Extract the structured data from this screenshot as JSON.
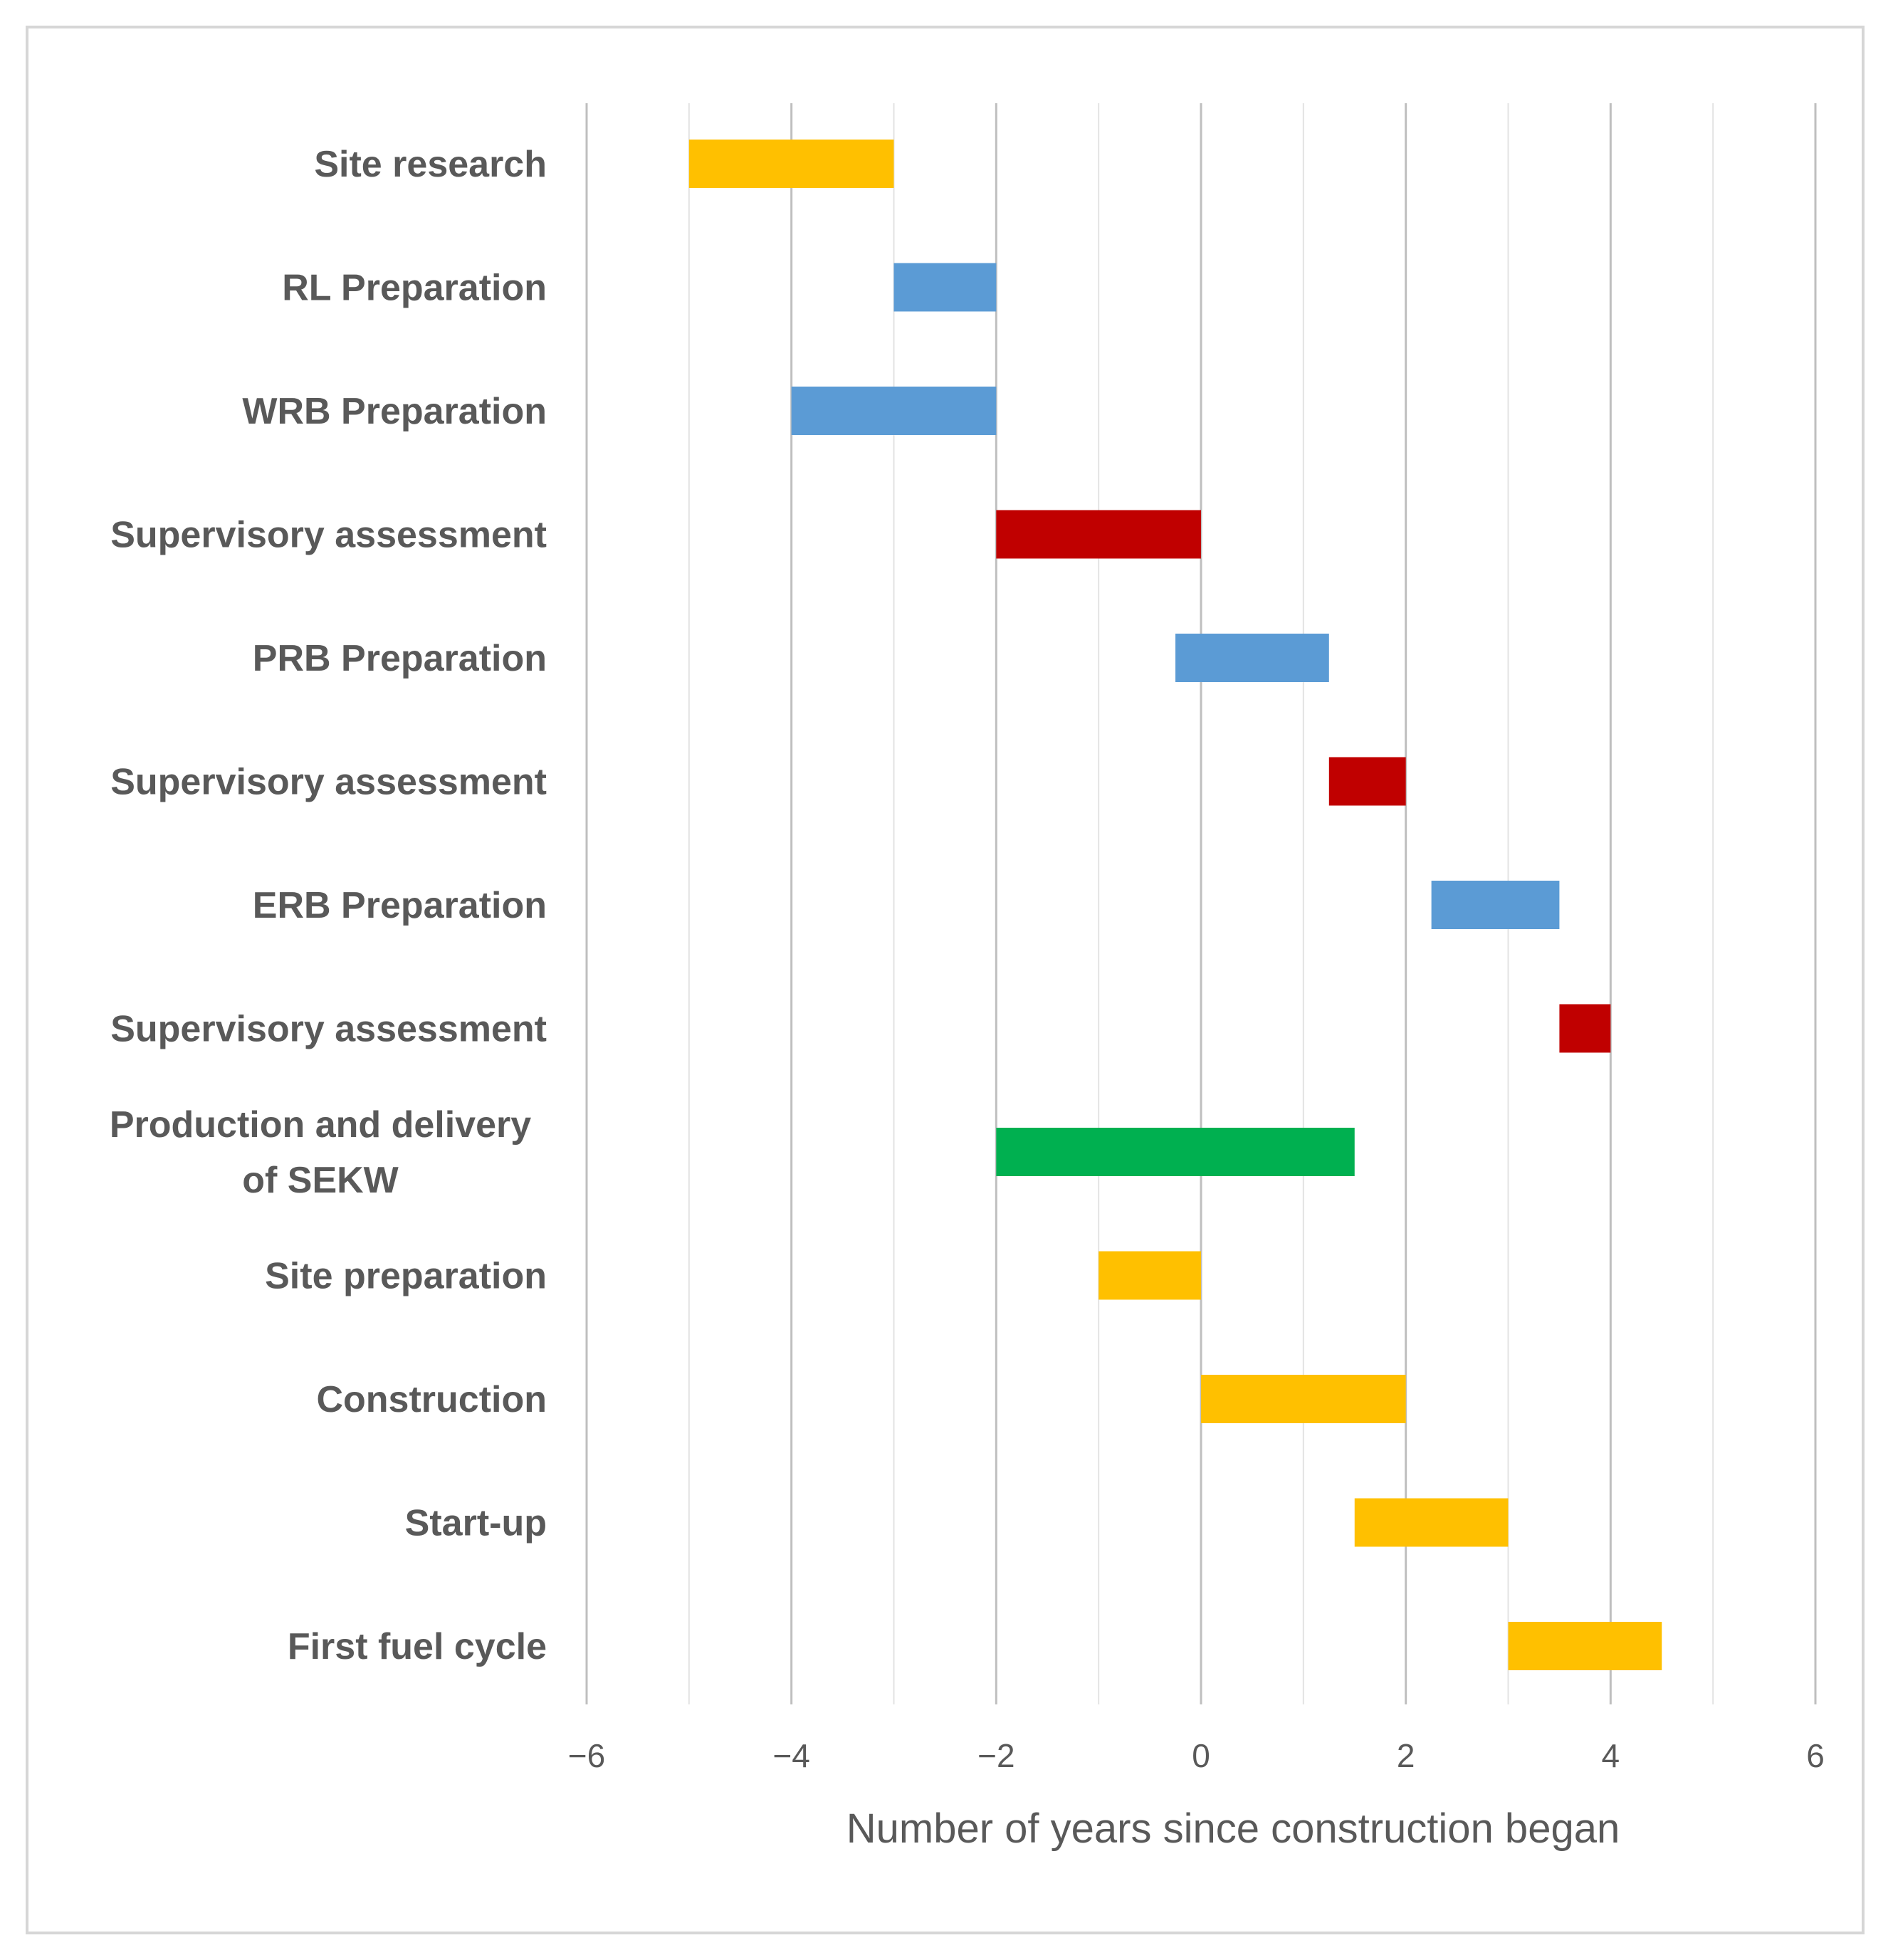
{
  "chart_data": {
    "type": "gantt-bar",
    "title": "",
    "xlabel": "Number of years since construction began",
    "ylabel": "",
    "xlim": [
      -6,
      6
    ],
    "x_ticks": [
      -6,
      -4,
      -2,
      0,
      2,
      4,
      6
    ],
    "x_tick_labels": [
      "−6",
      "−4",
      "−2",
      "0",
      "2",
      "4",
      "6"
    ],
    "grid": true,
    "colors": {
      "yellow": "#FFC000",
      "blue": "#5B9BD5",
      "red": "#C00000",
      "green": "#00B050",
      "text": "#595959",
      "grid_major": "#bfbfbf",
      "grid_minor": "#e3e3e3"
    },
    "tasks": [
      {
        "label": [
          "Site research"
        ],
        "start": -5,
        "end": -3,
        "color": "yellow"
      },
      {
        "label": [
          "RL Preparation"
        ],
        "start": -3,
        "end": -2,
        "color": "blue"
      },
      {
        "label": [
          "WRB Preparation"
        ],
        "start": -4,
        "end": -2,
        "color": "blue"
      },
      {
        "label": [
          "Supervisory assessment"
        ],
        "start": -2,
        "end": 0,
        "color": "red"
      },
      {
        "label": [
          "PRB Preparation"
        ],
        "start": -0.25,
        "end": 1.25,
        "color": "blue"
      },
      {
        "label": [
          "Supervisory assessment"
        ],
        "start": 1.25,
        "end": 2,
        "color": "red"
      },
      {
        "label": [
          "ERB Preparation"
        ],
        "start": 2.25,
        "end": 3.5,
        "color": "blue"
      },
      {
        "label": [
          "Supervisory assessment"
        ],
        "start": 3.5,
        "end": 4,
        "color": "red"
      },
      {
        "label": [
          "Production and delivery",
          "of SEKW"
        ],
        "start": -2,
        "end": 1.5,
        "color": "green"
      },
      {
        "label": [
          "Site preparation"
        ],
        "start": -1,
        "end": 0,
        "color": "yellow"
      },
      {
        "label": [
          "Construction"
        ],
        "start": 0,
        "end": 2,
        "color": "yellow"
      },
      {
        "label": [
          "Start-up"
        ],
        "start": 1.5,
        "end": 3,
        "color": "yellow"
      },
      {
        "label": [
          "First fuel cycle"
        ],
        "start": 3,
        "end": 4.5,
        "color": "yellow"
      }
    ]
  }
}
